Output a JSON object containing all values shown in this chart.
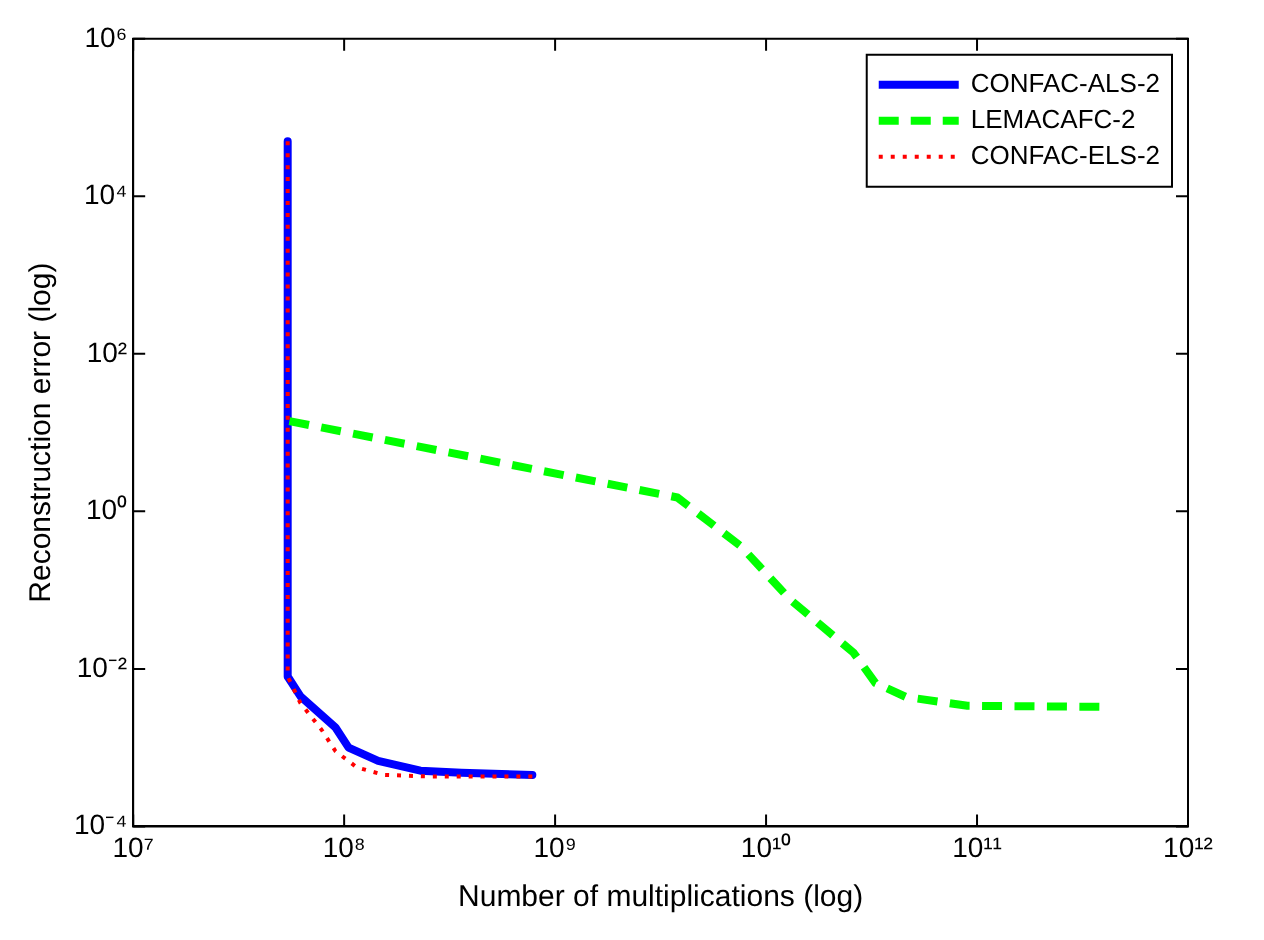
{
  "chart_data": {
    "type": "line",
    "xlabel": "Number of multiplications (log)",
    "ylabel": "Reconstruction error (log)",
    "log": "xy",
    "grid": false,
    "legend": "top right",
    "marker": "none",
    "xlim": [
      10000000,
      1000000000000
    ],
    "ylim": [
      0.0001,
      1000000
    ],
    "xticks": [
      {
        "value": 10000000,
        "label": "10⁷"
      },
      {
        "value": 100000000,
        "label": "10⁸"
      },
      {
        "value": 1000000000,
        "label": "10⁹"
      },
      {
        "value": 10000000000,
        "label": "10¹⁰"
      },
      {
        "value": 100000000000,
        "label": "10¹¹"
      },
      {
        "value": 1000000000000,
        "label": "10¹²"
      }
    ],
    "yticks": [
      {
        "value": 0.0001,
        "label": "10⁻⁴"
      },
      {
        "value": 0.01,
        "label": "10⁻²"
      },
      {
        "value": 1,
        "label": "10⁰"
      },
      {
        "value": 100,
        "label": "10²"
      },
      {
        "value": 10000,
        "label": "10⁴"
      },
      {
        "value": 1000000,
        "label": "10⁶"
      }
    ],
    "series": [
      {
        "name": "CONFAC-ALS-2",
        "color": "#0000ff",
        "line_style": "solid",
        "x": [
          54000000,
          54000000,
          62000000,
          91000000,
          105000000,
          145000000,
          230000000,
          360000000,
          780000000
        ],
        "values": [
          50000,
          0.008,
          0.0045,
          0.0018,
          0.001,
          0.00068,
          0.00051,
          0.00048,
          0.00045
        ]
      },
      {
        "name": "LEMACAFC-2",
        "color": "#00ff00",
        "line_style": "dashed",
        "x": [
          55000000,
          3800000000,
          7600000000,
          13000000000,
          26000000000,
          33000000000,
          46000000000,
          90000000000,
          380000000000
        ],
        "values": [
          14,
          1.5,
          0.36,
          0.076,
          0.016,
          0.0066,
          0.0044,
          0.0034,
          0.0033
        ]
      },
      {
        "name": "CONFAC-ELS-2",
        "color": "#ff0000",
        "line_style": "dotted",
        "x": [
          54000000,
          54000000,
          62000000,
          78000000,
          91000000,
          115000000,
          155000000,
          260000000,
          780000000
        ],
        "values": [
          50000,
          0.008,
          0.0037,
          0.0017,
          0.0009,
          0.00056,
          0.00045,
          0.00043,
          0.00043
        ]
      }
    ]
  }
}
